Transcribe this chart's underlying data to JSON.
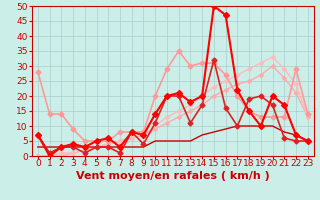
{
  "title": "",
  "xlabel": "Vent moyen/en rafales ( km/h )",
  "ylabel": "",
  "xlim": [
    -0.5,
    23.5
  ],
  "ylim": [
    0,
    50
  ],
  "yticks": [
    0,
    5,
    10,
    15,
    20,
    25,
    30,
    35,
    40,
    45,
    50
  ],
  "xticks": [
    0,
    1,
    2,
    3,
    4,
    5,
    6,
    7,
    8,
    9,
    10,
    11,
    12,
    13,
    14,
    15,
    16,
    17,
    18,
    19,
    20,
    21,
    22,
    23
  ],
  "background_color": "#cceee8",
  "grid_color": "#aacccc",
  "lines": [
    {
      "x": [
        0,
        1,
        2,
        3,
        4,
        5,
        6,
        7,
        8,
        9,
        10,
        11,
        12,
        13,
        14,
        15,
        16,
        17,
        18,
        19,
        20,
        21,
        22,
        23
      ],
      "y": [
        0,
        0,
        0,
        1,
        2,
        3,
        4,
        5,
        6,
        7,
        9,
        11,
        13,
        15,
        17,
        20,
        22,
        24,
        25,
        27,
        30,
        26,
        21,
        13
      ],
      "color": "#ffaaaa",
      "linewidth": 1.0,
      "marker": "D",
      "markersize": 2.0,
      "zorder": 2
    },
    {
      "x": [
        0,
        1,
        2,
        3,
        4,
        5,
        6,
        7,
        8,
        9,
        10,
        11,
        12,
        13,
        14,
        15,
        16,
        17,
        18,
        19,
        20,
        21,
        22,
        23
      ],
      "y": [
        0,
        0,
        1,
        1,
        2,
        3,
        4,
        5,
        6,
        7,
        10,
        13,
        15,
        17,
        20,
        23,
        25,
        27,
        29,
        31,
        33,
        29,
        24,
        13
      ],
      "color": "#ffbbbb",
      "linewidth": 1.0,
      "marker": "D",
      "markersize": 2.0,
      "zorder": 2
    },
    {
      "x": [
        0,
        1,
        2,
        3,
        4,
        5,
        6,
        7,
        8,
        9,
        10,
        11,
        12,
        13,
        14,
        15,
        16,
        17,
        18,
        19,
        20,
        21,
        22,
        23
      ],
      "y": [
        28,
        14,
        14,
        9,
        5,
        5,
        5,
        8,
        8,
        8,
        20,
        29,
        35,
        30,
        31,
        31,
        27,
        20,
        15,
        13,
        13,
        13,
        29,
        14
      ],
      "color": "#ff9999",
      "linewidth": 1.2,
      "marker": "D",
      "markersize": 2.5,
      "zorder": 3
    },
    {
      "x": [
        0,
        1,
        2,
        3,
        4,
        5,
        6,
        7,
        8,
        9,
        10,
        11,
        12,
        13,
        14,
        15,
        16,
        17,
        18,
        19,
        20,
        21,
        22,
        23
      ],
      "y": [
        7,
        1,
        3,
        3,
        1,
        3,
        3,
        1,
        8,
        4,
        11,
        20,
        20,
        11,
        17,
        32,
        16,
        10,
        19,
        20,
        17,
        6,
        5,
        5
      ],
      "color": "#dd2222",
      "linewidth": 1.2,
      "marker": "D",
      "markersize": 2.5,
      "zorder": 4
    },
    {
      "x": [
        0,
        1,
        2,
        3,
        4,
        5,
        6,
        7,
        8,
        9,
        10,
        11,
        12,
        13,
        14,
        15,
        16,
        17,
        18,
        19,
        20,
        21,
        22,
        23
      ],
      "y": [
        3,
        3,
        3,
        3,
        3,
        3,
        3,
        3,
        3,
        3,
        5,
        5,
        5,
        5,
        7,
        8,
        9,
        10,
        10,
        10,
        10,
        8,
        7,
        5
      ],
      "color": "#cc0000",
      "linewidth": 1.0,
      "marker": null,
      "markersize": 0,
      "zorder": 2
    },
    {
      "x": [
        0,
        1,
        2,
        3,
        4,
        5,
        6,
        7,
        8,
        9,
        10,
        11,
        12,
        13,
        14,
        15,
        16,
        17,
        18,
        19,
        20,
        21,
        22,
        23
      ],
      "y": [
        7,
        0,
        3,
        4,
        3,
        5,
        6,
        3,
        8,
        7,
        14,
        20,
        21,
        18,
        20,
        50,
        47,
        22,
        15,
        10,
        20,
        17,
        7,
        5
      ],
      "color": "#ff0000",
      "linewidth": 1.5,
      "marker": "D",
      "markersize": 3.0,
      "zorder": 5
    }
  ],
  "xlabel_color": "#cc0000",
  "xlabel_fontsize": 8,
  "tick_color": "#cc0000",
  "tick_fontsize": 6.5
}
